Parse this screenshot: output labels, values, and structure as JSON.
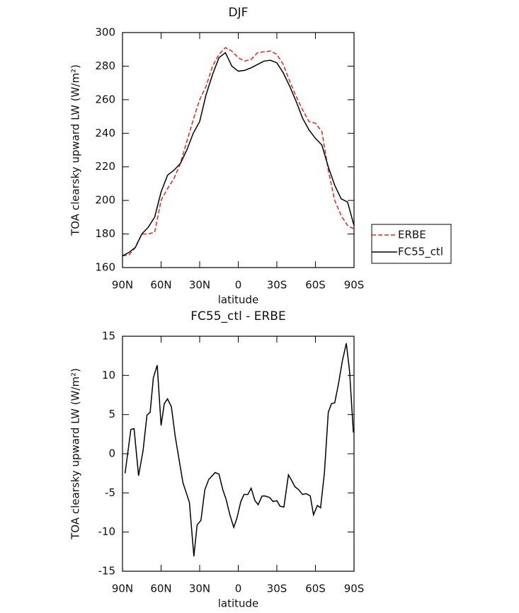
{
  "chart_data": [
    {
      "type": "line",
      "title": "DJF",
      "xlabel": "latitude",
      "ylabel": "TOA clearsky upward LW (W/m²)",
      "x": [
        90,
        85,
        80,
        75,
        70,
        65,
        60,
        55,
        50,
        45,
        40,
        35,
        30,
        25,
        20,
        15,
        10,
        5,
        0,
        -5,
        -10,
        -15,
        -20,
        -25,
        -30,
        -35,
        -40,
        -45,
        -50,
        -55,
        -60,
        -65,
        -70,
        -75,
        -80,
        -85,
        -90
      ],
      "series": [
        {
          "name": "ERBE",
          "color": "#e8211c",
          "style": "dashed",
          "values": [
            167,
            167.5,
            172,
            180,
            180,
            181,
            200,
            207,
            213,
            222,
            235,
            248,
            260,
            268,
            280,
            287,
            291,
            289,
            285,
            283,
            284,
            288,
            288.5,
            289,
            287,
            281,
            271,
            262,
            254,
            247,
            246,
            241,
            218,
            200,
            191,
            185,
            183
          ]
        },
        {
          "name": "FC55_ctl",
          "color": "#000000",
          "style": "solid",
          "values": [
            167,
            169,
            172,
            180,
            184,
            190,
            205,
            215,
            218,
            222,
            230,
            240,
            247,
            263,
            275,
            285,
            288,
            280,
            277,
            277.5,
            279,
            281,
            283,
            283.5,
            282,
            276,
            268,
            259,
            249,
            242,
            237,
            233,
            220,
            209,
            201,
            199,
            185
          ]
        }
      ],
      "xlim": [
        90,
        -90
      ],
      "xticks": [
        {
          "value": 90,
          "label": "90N"
        },
        {
          "value": 60,
          "label": "60N"
        },
        {
          "value": 30,
          "label": "30N"
        },
        0,
        {
          "value": -30,
          "label": "30S"
        },
        {
          "value": -60,
          "label": "60S"
        },
        {
          "value": -90,
          "label": "90S"
        }
      ],
      "ylim": [
        160,
        300
      ],
      "yticks": [
        160,
        180,
        200,
        220,
        240,
        260,
        280,
        300
      ],
      "legend": "right"
    },
    {
      "type": "line",
      "title": "FC55_ctl - ERBE",
      "xlabel": "latitude",
      "ylabel": "TOA clearsky upward LW (W/m²)",
      "x": [
        88,
        83.5,
        81,
        77.5,
        74,
        71,
        68.5,
        66,
        63,
        60,
        57.5,
        55,
        52,
        49,
        43,
        38,
        34.5,
        32,
        29,
        26,
        23,
        18,
        15,
        12,
        9.5,
        6.5,
        3.5,
        1,
        -2,
        -4.5,
        -7.5,
        -10,
        -13,
        -15.5,
        -18.5,
        -21,
        -24.5,
        -27,
        -30,
        -32.5,
        -35.5,
        -39,
        -41.5,
        -44,
        -47,
        -50,
        -53,
        -56,
        -58.5,
        -61.5,
        -64,
        -67,
        -70,
        -72.5,
        -75,
        -78,
        -81,
        -84,
        -86.5,
        -89.5
      ],
      "series": [
        {
          "name": "FC55_ctl - ERBE",
          "color": "#000000",
          "style": "solid",
          "values": [
            -2.5,
            3.1,
            3.2,
            -2.8,
            0.4,
            4.9,
            5.3,
            9.7,
            11.3,
            3.6,
            6.4,
            7,
            6,
            2.2,
            -3.7,
            -6.2,
            -13.1,
            -9.1,
            -8.5,
            -4.6,
            -3.3,
            -2.4,
            -2.6,
            -4.6,
            -5.8,
            -7.8,
            -9.4,
            -8.2,
            -6.1,
            -5.2,
            -5.2,
            -4.4,
            -6,
            -6.5,
            -5.4,
            -5.4,
            -5.6,
            -6.1,
            -6,
            -6.7,
            -6.8,
            -2.7,
            -3.4,
            -4.2,
            -4.6,
            -5.2,
            -5.1,
            -5.4,
            -7.8,
            -6.6,
            -6.9,
            -2.4,
            5.3,
            6.4,
            6.5,
            9,
            11.9,
            14.1,
            10.6,
            2.7
          ]
        }
      ],
      "xlim": [
        90,
        -90
      ],
      "xticks": [
        {
          "value": 90,
          "label": "90N"
        },
        {
          "value": 60,
          "label": "60N"
        },
        {
          "value": 30,
          "label": "30N"
        },
        0,
        {
          "value": -30,
          "label": "30S"
        },
        {
          "value": -60,
          "label": "60S"
        },
        {
          "value": -90,
          "label": "90S"
        }
      ],
      "ylim": [
        -15,
        15
      ],
      "yticks": [
        -15,
        -10,
        -5,
        0,
        5,
        10,
        15
      ]
    }
  ]
}
